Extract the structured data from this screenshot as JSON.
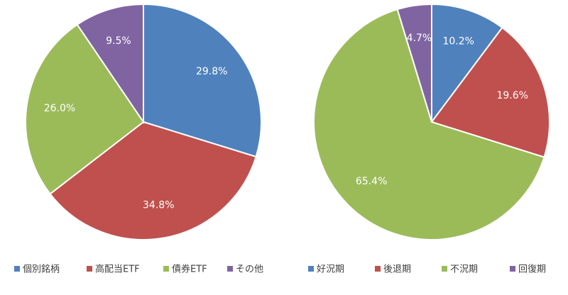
{
  "chart_data": [
    {
      "type": "pie",
      "categories": [
        "個別銘柄",
        "高配当ETF",
        "債券ETF",
        "その他"
      ],
      "values": [
        29.8,
        34.8,
        26.0,
        9.5
      ],
      "value_labels": [
        "29.8%",
        "34.8%",
        "26.0%",
        "9.5%"
      ],
      "colors": [
        "#4f81bd",
        "#c0504d",
        "#9bbb59",
        "#8064a2"
      ],
      "legend": "bottom"
    },
    {
      "type": "pie",
      "categories": [
        "好況期",
        "後退期",
        "不況期",
        "回復期"
      ],
      "values": [
        10.2,
        19.6,
        65.4,
        4.7
      ],
      "value_labels": [
        "10.2%",
        "19.6%",
        "65.4%",
        "4.7%"
      ],
      "colors": [
        "#4f81bd",
        "#c0504d",
        "#9bbb59",
        "#8064a2"
      ],
      "legend": "bottom"
    }
  ]
}
